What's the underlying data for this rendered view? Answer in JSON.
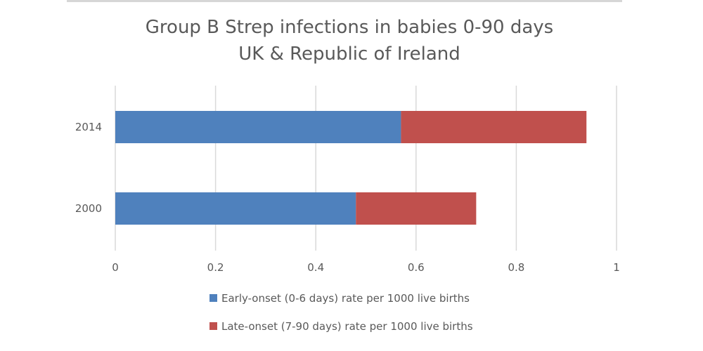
{
  "chart_data": {
    "type": "bar",
    "orientation": "horizontal",
    "stacked": true,
    "title": [
      "Group B Strep infections in babies 0-90 days",
      "UK & Republic of Ireland"
    ],
    "categories": [
      "2014",
      "2000"
    ],
    "series": [
      {
        "name": "Early-onset (0-6 days) rate per 1000 live births",
        "values": [
          0.57,
          0.48
        ],
        "color": "#4f81bd"
      },
      {
        "name": "Late-onset (7-90 days) rate per 1000 live births",
        "values": [
          0.37,
          0.24
        ],
        "color": "#c0504d"
      }
    ],
    "xlim": [
      0,
      1
    ],
    "xticks": [
      0,
      0.2,
      0.4,
      0.6,
      0.8,
      1
    ],
    "xtick_labels": [
      "0",
      "0.2",
      "0.4",
      "0.6",
      "0.8",
      "1"
    ],
    "grid": true,
    "legend_position": "bottom"
  }
}
